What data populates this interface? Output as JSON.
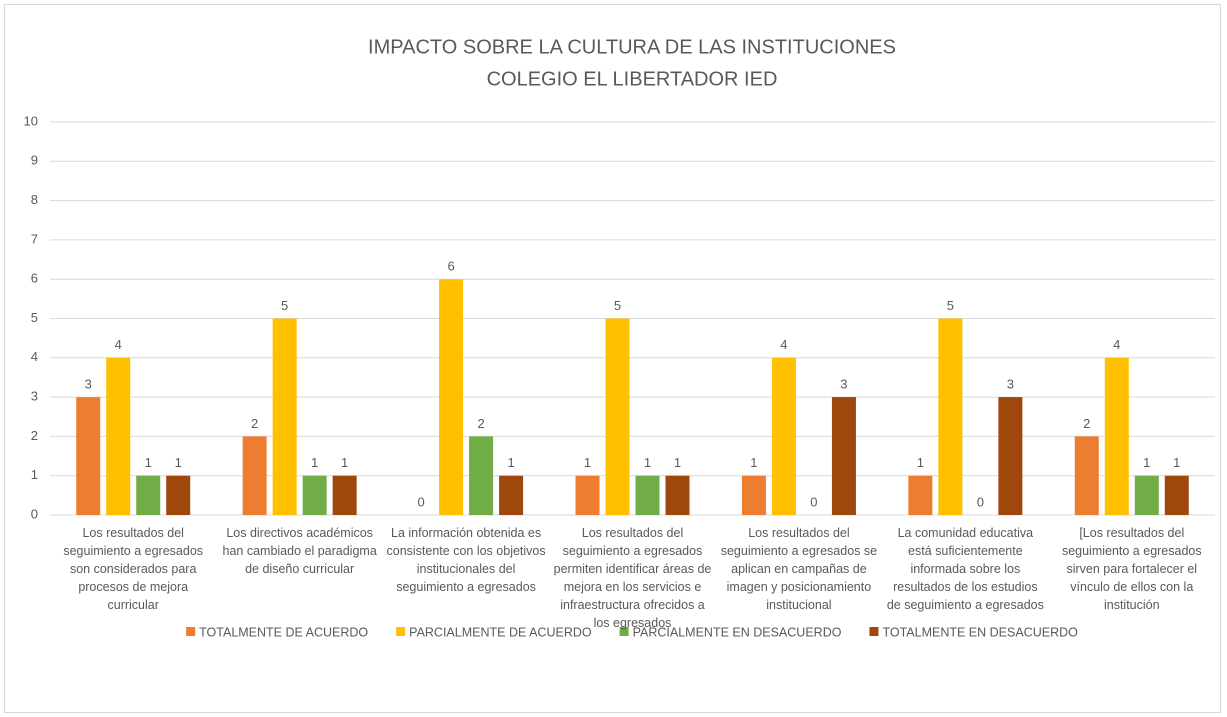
{
  "chart_data": {
    "type": "bar",
    "title": "IMPACTO SOBRE LA CULTURA DE LAS INSTITUCIONES",
    "subtitle": "COLEGIO EL LIBERTADOR IED",
    "categories": [
      "Los resultados del seguimiento a egresados son considerados para procesos de mejora curricular",
      "Los directivos académicos han cambiado el paradigma de diseño curricular",
      "La información obtenida es consistente con los objetivos institucionales del seguimiento a egresados",
      "Los resultados del seguimiento a egresados permiten identificar áreas de mejora en los servicios e infraestructura ofrecidos a los egresados",
      "Los resultados del seguimiento a egresados se aplican en campañas de imagen y posicionamiento institucional",
      "La comunidad educativa está suficientemente informada sobre los resultados de los estudios de seguimiento a egresados",
      "[Los resultados del seguimiento a egresados sirven para fortalecer el vínculo de ellos con la institución"
    ],
    "series": [
      {
        "name": "TOTALMENTE DE ACUERDO",
        "color": "#ed7d31",
        "values": [
          3,
          2,
          0,
          1,
          1,
          1,
          2
        ]
      },
      {
        "name": "PARCIALMENTE DE ACUERDO",
        "color": "#ffc000",
        "values": [
          4,
          5,
          6,
          5,
          4,
          5,
          4
        ]
      },
      {
        "name": "PARCIALMENTE EN DESACUERDO",
        "color": "#70ad47",
        "values": [
          1,
          1,
          2,
          1,
          0,
          0,
          1
        ]
      },
      {
        "name": "TOTALMENTE EN DESACUERDO",
        "color": "#9e480e",
        "values": [
          1,
          1,
          1,
          1,
          3,
          3,
          1
        ]
      }
    ],
    "ylim": [
      0,
      10
    ],
    "yticks": [
      0,
      1,
      2,
      3,
      4,
      5,
      6,
      7,
      8,
      9,
      10
    ],
    "grid": true,
    "legend": "bottom"
  }
}
